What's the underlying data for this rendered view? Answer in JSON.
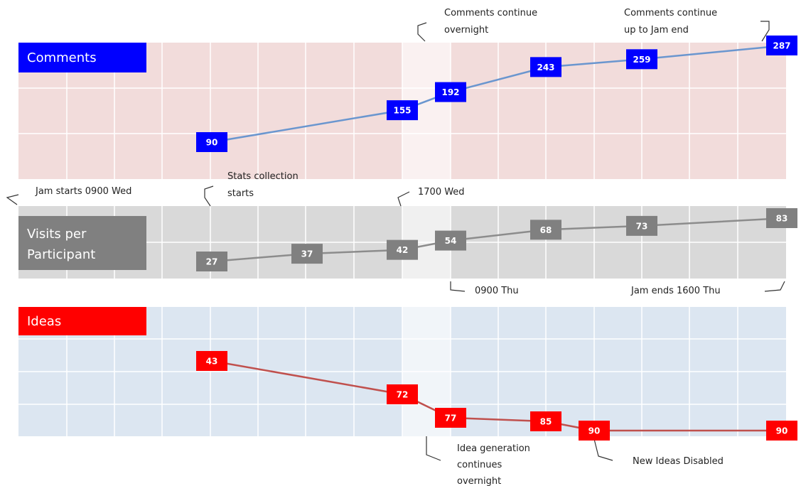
{
  "chart_data": [
    {
      "type": "line",
      "title": "Comments",
      "values": [
        90,
        155,
        192,
        243,
        259,
        287
      ],
      "data_labels": [
        "90",
        "155",
        "192",
        "243",
        "259",
        "287"
      ],
      "grid": true,
      "colors": {
        "background": "#f2dcdb",
        "line": "#6a96cf",
        "marker": "#0000ff",
        "title_bg": "#0000ff"
      }
    },
    {
      "type": "line",
      "title": "Visits per Participant",
      "title_lines": [
        "Visits per",
        "Participant"
      ],
      "values": [
        27,
        37,
        42,
        54,
        68,
        73,
        83
      ],
      "data_labels": [
        "27",
        "37",
        "42",
        "54",
        "68",
        "73",
        "83"
      ],
      "grid": true,
      "colors": {
        "background": "#d9d9d9",
        "line": "#8c8c8c",
        "marker": "#808080",
        "title_bg": "#808080"
      }
    },
    {
      "type": "line",
      "title": "Ideas",
      "values": [
        43,
        72,
        77,
        85,
        90,
        90
      ],
      "data_labels": [
        "43",
        "72",
        "77",
        "85",
        "90",
        "90"
      ],
      "grid": true,
      "colors": {
        "background": "#dce6f1",
        "line": "#c0504d",
        "marker": "#ff0000",
        "title_bg": "#ff0000"
      }
    }
  ],
  "annotations": {
    "jam_start": "Jam starts 0900 Wed",
    "stats_start": [
      "Stats collection",
      "starts"
    ],
    "wed_1700": "1700 Wed",
    "thu_0900": "0900 Thu",
    "jam_end": "Jam ends 1600 Thu",
    "comments_overnight": [
      "Comments continue",
      "overnight"
    ],
    "comments_to_end": [
      "Comments continue",
      "up to Jam end"
    ],
    "ideas_overnight": [
      "Idea generation",
      "continues",
      "overnight"
    ],
    "ideas_disabled": "New Ideas Disabled"
  }
}
